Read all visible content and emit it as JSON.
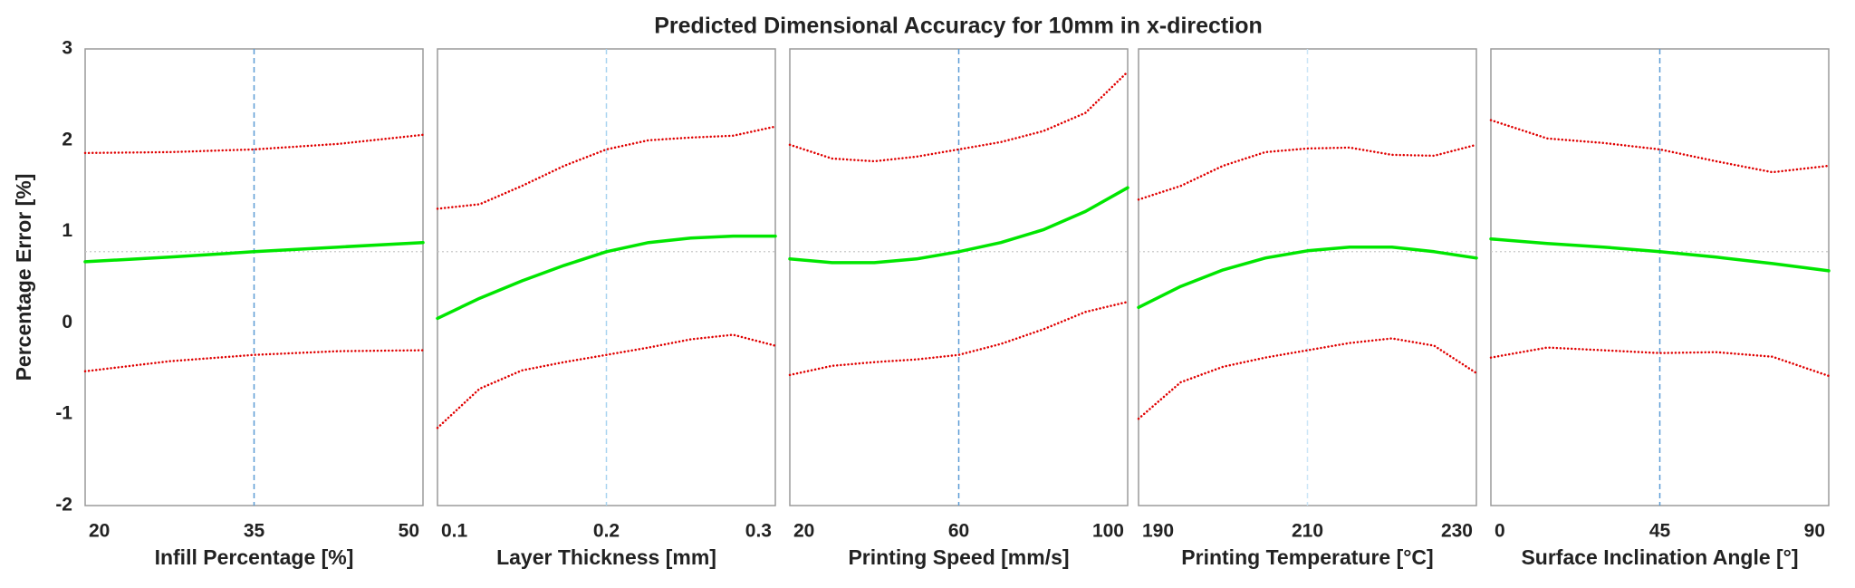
{
  "title": "Predicted Dimensional Accuracy for 10mm in x-direction",
  "y_label": "Percentage Error [%]",
  "chart_data": [
    {
      "type": "line",
      "x_label": "Infill Percentage [%]",
      "x": [
        20,
        27.5,
        35,
        42.5,
        50
      ],
      "xlim": [
        20,
        50
      ],
      "xticks": [
        20,
        35,
        50
      ],
      "ylim": [
        -2,
        3
      ],
      "yticks": [
        -2,
        -1,
        0,
        1,
        2,
        3
      ],
      "reference_y": 0.78,
      "marker_x": 35,
      "marker_color": "#5b9bd5",
      "series": [
        {
          "color": "#00e600",
          "style": "solid",
          "values": [
            0.67,
            0.72,
            0.78,
            0.83,
            0.88
          ]
        },
        {
          "color": "#e00000",
          "style": "dotted",
          "values": [
            1.86,
            1.87,
            1.9,
            1.96,
            2.06
          ]
        },
        {
          "color": "#e00000",
          "style": "dotted",
          "values": [
            -0.53,
            -0.42,
            -0.35,
            -0.31,
            -0.3
          ]
        }
      ]
    },
    {
      "type": "line",
      "x_label": "Layer Thickness [mm]",
      "x": [
        0.1,
        0.125,
        0.15,
        0.175,
        0.2,
        0.225,
        0.25,
        0.275,
        0.3
      ],
      "xlim": [
        0.1,
        0.3
      ],
      "xticks": [
        0.1,
        0.2,
        0.3
      ],
      "ylim": [
        -2,
        3
      ],
      "reference_y": 0.78,
      "marker_x": 0.2,
      "marker_color": "#a8d4f0",
      "series": [
        {
          "color": "#00e600",
          "style": "solid",
          "values": [
            0.05,
            0.27,
            0.46,
            0.63,
            0.78,
            0.88,
            0.93,
            0.95,
            0.95
          ]
        },
        {
          "color": "#e00000",
          "style": "dotted",
          "values": [
            1.25,
            1.3,
            1.5,
            1.72,
            1.9,
            2.0,
            2.03,
            2.05,
            2.15
          ]
        },
        {
          "color": "#e00000",
          "style": "dotted",
          "values": [
            -1.15,
            -0.72,
            -0.52,
            -0.43,
            -0.35,
            -0.27,
            -0.18,
            -0.13,
            -0.25
          ]
        }
      ]
    },
    {
      "type": "line",
      "x_label": "Printing Speed [mm/s]",
      "x": [
        20,
        30,
        40,
        50,
        60,
        70,
        80,
        90,
        100
      ],
      "xlim": [
        20,
        100
      ],
      "xticks": [
        20,
        60,
        100
      ],
      "ylim": [
        -2,
        3
      ],
      "reference_y": 0.78,
      "marker_x": 60,
      "marker_color": "#5b9bd5",
      "series": [
        {
          "color": "#00e600",
          "style": "solid",
          "values": [
            0.7,
            0.66,
            0.66,
            0.7,
            0.78,
            0.88,
            1.02,
            1.22,
            1.48
          ]
        },
        {
          "color": "#e00000",
          "style": "dotted",
          "values": [
            1.95,
            1.8,
            1.77,
            1.82,
            1.9,
            1.98,
            2.1,
            2.3,
            2.75
          ]
        },
        {
          "color": "#e00000",
          "style": "dotted",
          "values": [
            -0.57,
            -0.47,
            -0.43,
            -0.4,
            -0.35,
            -0.23,
            -0.07,
            0.12,
            0.23
          ]
        }
      ]
    },
    {
      "type": "line",
      "x_label": "Printing Temperature [°C]",
      "x": [
        190,
        195,
        200,
        205,
        210,
        215,
        220,
        225,
        230
      ],
      "xlim": [
        190,
        230
      ],
      "xticks": [
        190,
        210,
        230
      ],
      "ylim": [
        -2,
        3
      ],
      "reference_y": 0.78,
      "marker_x": 210,
      "marker_color": "#cce6f7",
      "series": [
        {
          "color": "#00e600",
          "style": "solid",
          "values": [
            0.17,
            0.4,
            0.58,
            0.71,
            0.79,
            0.83,
            0.83,
            0.78,
            0.71
          ]
        },
        {
          "color": "#e00000",
          "style": "dotted",
          "values": [
            1.35,
            1.5,
            1.72,
            1.87,
            1.91,
            1.92,
            1.84,
            1.83,
            1.95
          ]
        },
        {
          "color": "#e00000",
          "style": "dotted",
          "values": [
            -1.05,
            -0.65,
            -0.48,
            -0.38,
            -0.3,
            -0.22,
            -0.17,
            -0.25,
            -0.55
          ]
        }
      ]
    },
    {
      "type": "line",
      "x_label": "Surface Inclination Angle [°]",
      "x": [
        0,
        15,
        30,
        45,
        60,
        75,
        90
      ],
      "xlim": [
        0,
        90
      ],
      "xticks": [
        0,
        45,
        90
      ],
      "ylim": [
        -2,
        3
      ],
      "reference_y": 0.78,
      "marker_x": 45,
      "marker_color": "#5b9bd5",
      "series": [
        {
          "color": "#00e600",
          "style": "solid",
          "values": [
            0.92,
            0.87,
            0.83,
            0.78,
            0.72,
            0.65,
            0.57
          ]
        },
        {
          "color": "#e00000",
          "style": "dotted",
          "values": [
            2.22,
            2.02,
            1.97,
            1.9,
            1.77,
            1.65,
            1.72
          ]
        },
        {
          "color": "#e00000",
          "style": "dotted",
          "values": [
            -0.38,
            -0.27,
            -0.3,
            -0.33,
            -0.32,
            -0.37,
            -0.58
          ]
        }
      ]
    }
  ]
}
